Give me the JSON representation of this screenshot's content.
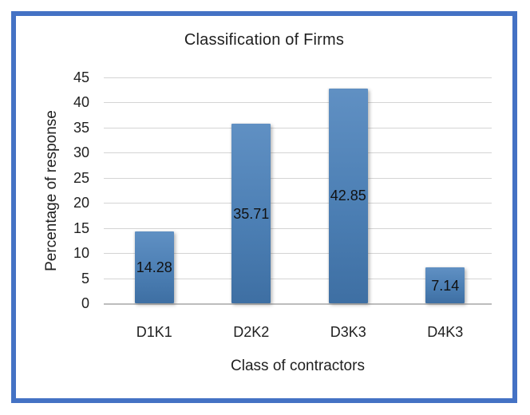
{
  "frame": {
    "border_color": "#4472C4",
    "background": "#FFFFFF"
  },
  "chart_data": {
    "type": "bar",
    "title": "Classification of Firms",
    "xlabel": "Class of contractors",
    "ylabel": "Percentage of response",
    "categories": [
      "D1K1",
      "D2K2",
      "D3K3",
      "D4K3"
    ],
    "values": [
      14.28,
      35.71,
      42.85,
      7.14
    ],
    "data_labels": [
      "14.28",
      "35.71",
      "42.85",
      "7.14"
    ],
    "data_label_position": "inside-center",
    "ylim": [
      0,
      45
    ],
    "ytick_step": 5,
    "yticks": [
      "45",
      "40",
      "35",
      "30",
      "25",
      "20",
      "15",
      "10",
      "5",
      "0"
    ],
    "grid": "horizontal",
    "legend": "none",
    "colors": {
      "bar_gradient_top": "#6090C3",
      "bar_gradient_mid": "#4C7FB4",
      "bar_gradient_bottom": "#3E6FA3",
      "gridline": "#D4D4D4",
      "axis_line": "#BDBDBD",
      "text": "#1F1F1F"
    }
  }
}
